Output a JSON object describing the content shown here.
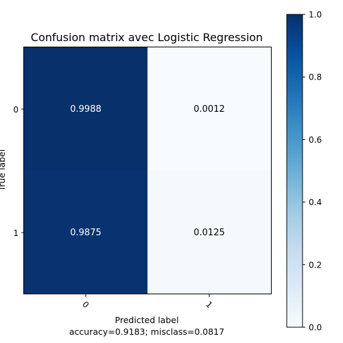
{
  "chart_data": {
    "type": "heatmap",
    "title": "Confusion matrix avec Logistic Regression",
    "xlabel": "Predicted label",
    "ylabel": "True label",
    "footnote": "accuracy=0.9183; misclass=0.0817",
    "x_categories": [
      "0",
      "1"
    ],
    "y_categories": [
      "0",
      "1"
    ],
    "values": [
      [
        0.9988,
        0.0012
      ],
      [
        0.9875,
        0.0125
      ]
    ],
    "value_labels": [
      [
        "0.9988",
        "0.0012"
      ],
      [
        "0.9875",
        "0.0125"
      ]
    ],
    "colorscale": "Blues",
    "colorbar_range": [
      0.0,
      1.0
    ],
    "colorbar_ticks": [
      "0.0",
      "0.2",
      "0.4",
      "0.6",
      "0.8",
      "1.0"
    ]
  }
}
